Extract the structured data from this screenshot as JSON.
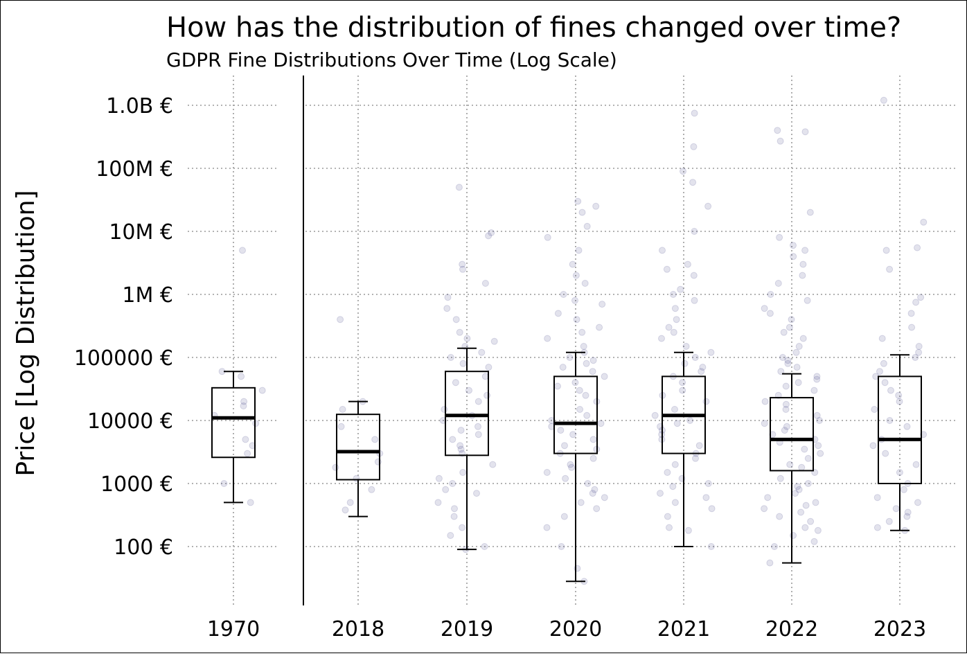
{
  "colors": {
    "box": "#000000",
    "grid": "#999999",
    "points": "#1a1a6e",
    "background": "#ffffff"
  },
  "chart_data": {
    "type": "box",
    "title": "How has the distribution of fines changed over time?",
    "subtitle": "GDPR Fine Distributions Over Time (Log Scale)",
    "ylabel": "Price [Log Distribution]",
    "xlabel": "",
    "y_scale": "log",
    "ylim": [
      13,
      2000000000
    ],
    "grid": true,
    "categories": [
      "1970",
      "2018",
      "2019",
      "2020",
      "2021",
      "2022",
      "2023"
    ],
    "y_ticks": [
      {
        "value": 100,
        "label": "100 €"
      },
      {
        "value": 1000,
        "label": "1000 €"
      },
      {
        "value": 10000,
        "label": "10000 €"
      },
      {
        "value": 100000,
        "label": "100000 €"
      },
      {
        "value": 1000000,
        "label": "1M €"
      },
      {
        "value": 10000000,
        "label": "10M €"
      },
      {
        "value": 100000000,
        "label": "100M €"
      },
      {
        "value": 1000000000,
        "label": "1.0B €"
      }
    ],
    "boxes": [
      {
        "category": "1970",
        "whisker_low": 500,
        "q1": 2600,
        "median": 11000,
        "q3": 33000,
        "whisker_high": 60000
      },
      {
        "category": "2018",
        "whisker_low": 300,
        "q1": 1150,
        "median": 3200,
        "q3": 12500,
        "whisker_high": 20000
      },
      {
        "category": "2019",
        "whisker_low": 90,
        "q1": 2800,
        "median": 12000,
        "q3": 60000,
        "whisker_high": 140000
      },
      {
        "category": "2020",
        "whisker_low": 28,
        "q1": 3000,
        "median": 9000,
        "q3": 50000,
        "whisker_high": 120000
      },
      {
        "category": "2021",
        "whisker_low": 100,
        "q1": 3000,
        "median": 12000,
        "q3": 50000,
        "whisker_high": 120000
      },
      {
        "category": "2022",
        "whisker_low": 55,
        "q1": 1600,
        "median": 5000,
        "q3": 23000,
        "whisker_high": 55000
      },
      {
        "category": "2023",
        "whisker_low": 180,
        "q1": 1000,
        "median": 5000,
        "q3": 50000,
        "whisker_high": 110000
      }
    ],
    "points": {
      "1970": [
        5000000,
        60000,
        50000,
        30000,
        20000,
        17000,
        12000,
        9000,
        5000,
        4000,
        3000,
        1000,
        500
      ],
      "2018": [
        400000,
        20000,
        15000,
        8000,
        5000,
        3000,
        2200,
        1800,
        1200,
        800,
        500,
        380
      ],
      "2019": [
        50000000,
        9500000,
        8500000,
        3000000,
        2500000,
        1500000,
        900000,
        600000,
        400000,
        250000,
        200000,
        180000,
        150000,
        120000,
        100000,
        80000,
        70000,
        50000,
        40000,
        30000,
        25000,
        20000,
        15000,
        12000,
        10000,
        8000,
        7000,
        6000,
        5000,
        4000,
        3500,
        3000,
        2000,
        1500,
        1200,
        1000,
        800,
        700,
        500,
        400,
        300,
        200,
        150,
        100,
        90
      ],
      "2020": [
        30000000,
        25000000,
        20000000,
        12000000,
        8000000,
        5000000,
        3000000,
        2000000,
        1500000,
        1000000,
        800000,
        700000,
        500000,
        400000,
        300000,
        250000,
        200000,
        150000,
        120000,
        100000,
        90000,
        80000,
        70000,
        60000,
        50000,
        40000,
        35000,
        30000,
        25000,
        20000,
        15000,
        12000,
        10000,
        9000,
        8000,
        7000,
        6000,
        5000,
        4000,
        3500,
        3000,
        2500,
        2000,
        1800,
        1500,
        1200,
        1000,
        800,
        700,
        600,
        500,
        400,
        300,
        200,
        100,
        45,
        28
      ],
      "2021": [
        750000000,
        220000000,
        90000000,
        60000000,
        25000000,
        10000000,
        5000000,
        3000000,
        2500000,
        2000000,
        1200000,
        1000000,
        800000,
        600000,
        400000,
        300000,
        250000,
        200000,
        150000,
        120000,
        100000,
        80000,
        70000,
        60000,
        50000,
        40000,
        30000,
        25000,
        20000,
        15000,
        12000,
        10000,
        9000,
        8000,
        7000,
        6000,
        5000,
        4000,
        3000,
        2500,
        2000,
        1500,
        1200,
        1000,
        900,
        700,
        600,
        500,
        400,
        300,
        200,
        180,
        100
      ],
      "2022": [
        400000000,
        380000000,
        270000000,
        20000000,
        8000000,
        6000000,
        5000000,
        4000000,
        3000000,
        2000000,
        1500000,
        1000000,
        800000,
        600000,
        500000,
        400000,
        300000,
        250000,
        200000,
        150000,
        120000,
        100000,
        90000,
        80000,
        70000,
        60000,
        50000,
        45000,
        40000,
        35000,
        30000,
        25000,
        20000,
        18000,
        15000,
        12000,
        10000,
        9000,
        8000,
        7000,
        6000,
        5000,
        4500,
        4000,
        3500,
        3000,
        2500,
        2000,
        1800,
        1500,
        1200,
        1000,
        900,
        800,
        700,
        600,
        500,
        450,
        400,
        350,
        300,
        250,
        200,
        180,
        150,
        120,
        100,
        55
      ],
      "2023": [
        1200000000,
        14000000,
        5500000,
        5000000,
        2500000,
        900000,
        750000,
        500000,
        300000,
        200000,
        150000,
        120000,
        100000,
        80000,
        60000,
        50000,
        40000,
        30000,
        25000,
        20000,
        15000,
        10000,
        8000,
        6000,
        5000,
        4000,
        3000,
        2000,
        1500,
        1000,
        800,
        600,
        500,
        400,
        350,
        300,
        250,
        200,
        180
      ]
    }
  }
}
